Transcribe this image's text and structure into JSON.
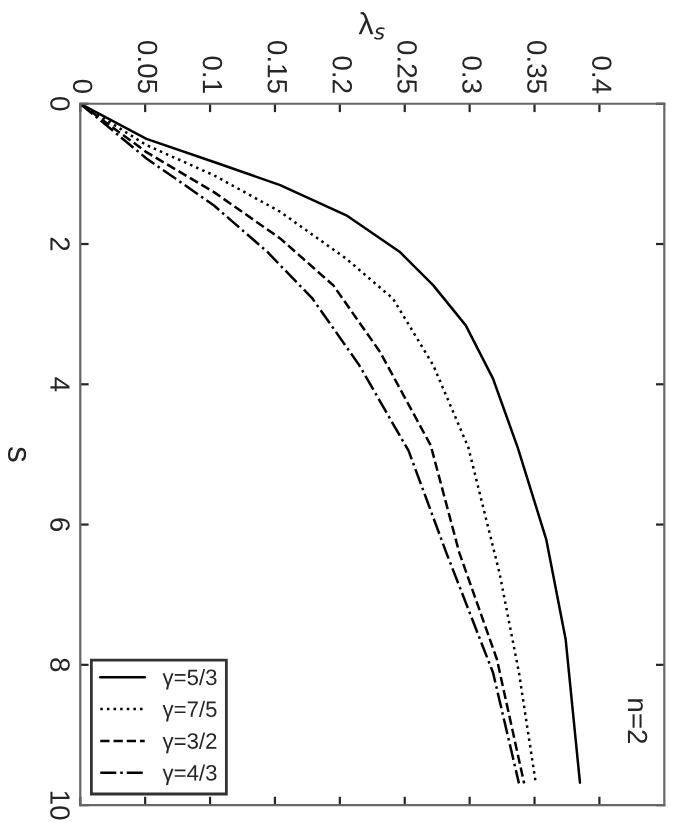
{
  "chart_data": {
    "type": "line",
    "xlabel": "λ$_{s}$",
    "ylabel": "s",
    "xlim": [
      0,
      0.45
    ],
    "xticks": [
      0,
      0.05,
      0.1,
      0.15,
      0.2,
      0.25,
      0.3,
      0.35,
      0.4
    ],
    "ylim": [
      10,
      0
    ],
    "yticks": [
      0,
      2,
      4,
      6,
      8,
      10
    ],
    "legend": "bottom left",
    "grid": false,
    "annotations": [
      "n=2"
    ],
    "series": [
      {
        "name": "γ=5/3",
        "color": "#000000",
        "line_style": "solid",
        "x": [
          0,
          0.051,
          0.103,
          0.154,
          0.205,
          0.246,
          0.272,
          0.297,
          0.318,
          0.337,
          0.359,
          0.374,
          0.385
        ],
        "values": [
          0,
          0.5,
          0.83,
          1.16,
          1.59,
          2.11,
          2.59,
          3.16,
          3.92,
          4.9,
          6.21,
          7.64,
          9.68
        ]
      },
      {
        "name": "γ=7/5",
        "color": "#000000",
        "line_style": "dotted",
        "x": [
          0,
          0.051,
          0.103,
          0.154,
          0.205,
          0.241,
          0.272,
          0.299,
          0.323,
          0.338,
          0.351
        ],
        "values": [
          0,
          0.59,
          1.02,
          1.54,
          2.21,
          2.78,
          3.73,
          4.9,
          6.69,
          8.11,
          9.69
        ]
      },
      {
        "name": "γ=3/2",
        "color": "#000000",
        "line_style": "dashed",
        "x": [
          0,
          0.051,
          0.103,
          0.154,
          0.195,
          0.231,
          0.27,
          0.292,
          0.321,
          0.342
        ],
        "values": [
          0,
          0.69,
          1.26,
          1.92,
          2.59,
          3.54,
          4.87,
          6.4,
          7.92,
          9.69
        ]
      },
      {
        "name": "γ=4/3",
        "color": "#000000",
        "line_style": "dashdot",
        "x": [
          0,
          0.051,
          0.103,
          0.144,
          0.179,
          0.215,
          0.253,
          0.282,
          0.318,
          0.338
        ],
        "values": [
          0,
          0.78,
          1.45,
          2.11,
          2.78,
          3.73,
          4.95,
          6.4,
          8.11,
          9.69
        ]
      }
    ]
  }
}
